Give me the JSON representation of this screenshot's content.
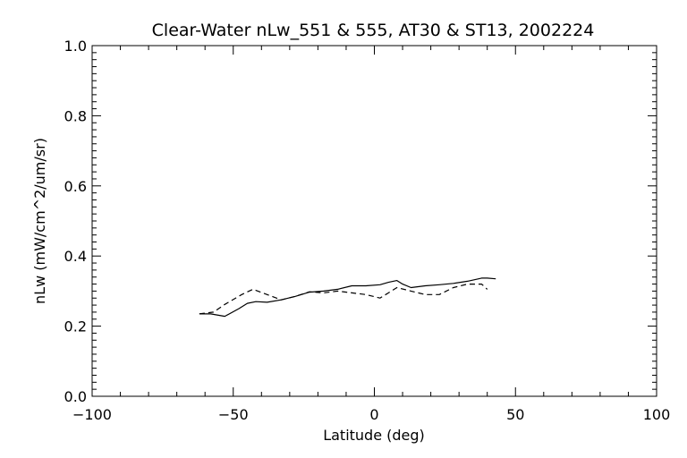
{
  "chart_data": {
    "type": "line",
    "title": "Clear-Water nLw_551 & 555, AT30 & ST13, 2002224",
    "xlabel": "Latitude (deg)",
    "ylabel": "nLw (mW/cm^2/um/sr)",
    "xlim": [
      -100,
      100
    ],
    "ylim": [
      0.0,
      1.0
    ],
    "xticks": [
      -100,
      -50,
      0,
      50,
      100
    ],
    "xtick_labels": [
      "−100",
      "−50",
      "0",
      "50",
      "100"
    ],
    "yticks": [
      0.0,
      0.2,
      0.4,
      0.6,
      0.8,
      1.0
    ],
    "ytick_labels": [
      "0.0",
      "0.2",
      "0.4",
      "0.6",
      "0.8",
      "1.0"
    ],
    "grid": false,
    "series": [
      {
        "style": "solid",
        "x": [
          -62,
          -58,
          -53,
          -48,
          -45,
          -42,
          -38,
          -33,
          -28,
          -23,
          -18,
          -13,
          -8,
          -3,
          2,
          5,
          8,
          10,
          13,
          18,
          23,
          28,
          33,
          38,
          40,
          43
        ],
        "y": [
          0.235,
          0.235,
          0.228,
          0.25,
          0.265,
          0.27,
          0.268,
          0.275,
          0.285,
          0.297,
          0.3,
          0.305,
          0.315,
          0.315,
          0.318,
          0.325,
          0.33,
          0.32,
          0.31,
          0.315,
          0.318,
          0.322,
          0.328,
          0.337,
          0.337,
          0.335
        ]
      },
      {
        "style": "dashed",
        "x": [
          -62,
          -57,
          -53,
          -47,
          -43,
          -38,
          -33,
          -28,
          -23,
          -18,
          -13,
          -8,
          -3,
          2,
          5,
          8,
          13,
          18,
          23,
          28,
          33,
          38,
          40
        ],
        "y": [
          0.235,
          0.24,
          0.262,
          0.29,
          0.305,
          0.29,
          0.275,
          0.285,
          0.298,
          0.295,
          0.3,
          0.295,
          0.29,
          0.28,
          0.295,
          0.31,
          0.3,
          0.29,
          0.29,
          0.31,
          0.32,
          0.32,
          0.305
        ]
      }
    ]
  }
}
